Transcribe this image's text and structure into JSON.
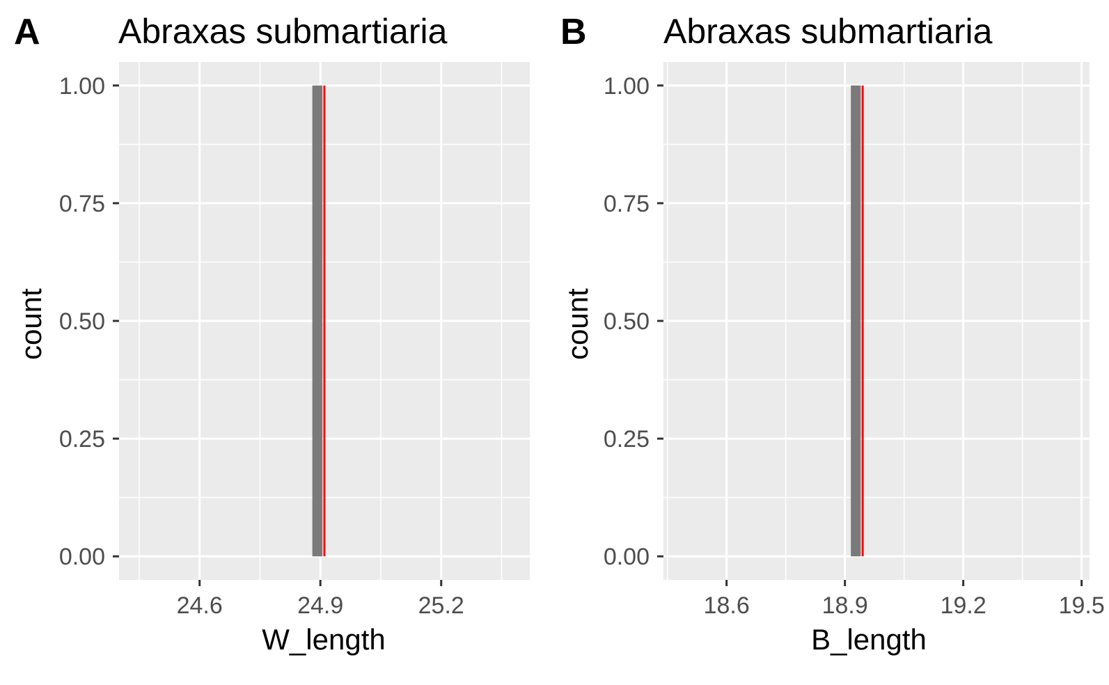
{
  "chart_data": [
    {
      "tag": "A",
      "type": "bar",
      "title": "Abraxas submartiaria",
      "xlabel": "W_length",
      "ylabel": "count",
      "xlim": [
        24.4,
        25.42
      ],
      "ylim": [
        -0.05,
        1.05
      ],
      "x_ticks": [
        "24.6",
        "24.9",
        "25.2"
      ],
      "x_tick_values": [
        24.6,
        24.9,
        25.2
      ],
      "y_ticks": [
        "0.00",
        "0.25",
        "0.50",
        "0.75",
        "1.00"
      ],
      "y_tick_values": [
        0,
        0.25,
        0.5,
        0.75,
        1.0
      ],
      "bars": [
        {
          "xmin": 24.88,
          "xmax": 24.905,
          "count": 1
        }
      ],
      "mean_line": {
        "x": 24.91,
        "color": "#ff0000"
      },
      "bar_color": "#7a7a7a",
      "grid": true,
      "panel_color": "#ebebeb"
    },
    {
      "tag": "B",
      "type": "bar",
      "title": "Abraxas submartiaria",
      "xlabel": "B_length",
      "ylabel": "count",
      "xlim": [
        18.44,
        19.52
      ],
      "ylim": [
        -0.05,
        1.05
      ],
      "x_ticks": [
        "18.6",
        "18.9",
        "19.2",
        "19.5"
      ],
      "x_tick_values": [
        18.6,
        18.9,
        19.2,
        19.5
      ],
      "y_ticks": [
        "0.00",
        "0.25",
        "0.50",
        "0.75",
        "1.00"
      ],
      "y_tick_values": [
        0,
        0.25,
        0.5,
        0.75,
        1.0
      ],
      "bars": [
        {
          "xmin": 18.915,
          "xmax": 18.94,
          "count": 1
        }
      ],
      "mean_line": {
        "x": 18.945,
        "color": "#ff0000"
      },
      "bar_color": "#7a7a7a",
      "grid": true,
      "panel_color": "#ebebeb"
    }
  ]
}
